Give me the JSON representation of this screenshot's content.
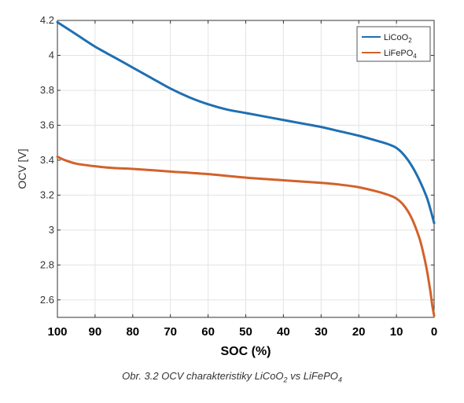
{
  "caption": {
    "prefix": "Obr. 3.2 OCV charakteristiky LiCoO",
    "sub1": "2",
    "middle": " vs LiFePO",
    "sub2": "4"
  },
  "chart_data": {
    "type": "line",
    "xlabel": "SOC (%)",
    "ylabel": "OCV [V]",
    "xlim": [
      100,
      0
    ],
    "ylim": [
      2.5,
      4.2
    ],
    "x_reversed": true,
    "grid": true,
    "legend_position": "top-right",
    "xticks": [
      100,
      90,
      80,
      70,
      60,
      50,
      40,
      30,
      20,
      10,
      0
    ],
    "yticks": [
      2.6,
      2.8,
      3.0,
      3.2,
      3.4,
      3.6,
      3.8,
      4.0,
      4.2
    ],
    "ytick_labels": [
      "2.6",
      "2.8",
      "3",
      "3.2",
      "3.4",
      "3.6",
      "3.8",
      "4",
      "4.2"
    ],
    "series": [
      {
        "name": "LiCoO2",
        "legend_text": "LiCoO",
        "legend_sub": "2",
        "color": "#1f6fb2",
        "x": [
          100,
          95,
          90,
          85,
          80,
          75,
          70,
          65,
          60,
          55,
          50,
          45,
          40,
          35,
          30,
          25,
          20,
          15,
          12,
          10,
          8,
          6,
          4,
          2,
          1,
          0
        ],
        "y": [
          4.19,
          4.12,
          4.05,
          3.99,
          3.93,
          3.87,
          3.81,
          3.76,
          3.72,
          3.69,
          3.67,
          3.65,
          3.63,
          3.61,
          3.59,
          3.565,
          3.54,
          3.51,
          3.49,
          3.47,
          3.43,
          3.37,
          3.29,
          3.19,
          3.12,
          3.04
        ]
      },
      {
        "name": "LiFePO4",
        "legend_text": "LiFePO",
        "legend_sub": "4",
        "color": "#d2622a",
        "x": [
          100,
          98,
          95,
          90,
          85,
          80,
          70,
          60,
          50,
          40,
          30,
          25,
          20,
          15,
          12,
          10,
          8,
          6,
          4,
          3,
          2,
          1,
          0.5,
          0
        ],
        "y": [
          3.42,
          3.4,
          3.38,
          3.365,
          3.355,
          3.35,
          3.335,
          3.32,
          3.3,
          3.285,
          3.27,
          3.26,
          3.245,
          3.22,
          3.2,
          3.18,
          3.14,
          3.07,
          2.96,
          2.88,
          2.78,
          2.65,
          2.57,
          2.51
        ]
      }
    ]
  }
}
